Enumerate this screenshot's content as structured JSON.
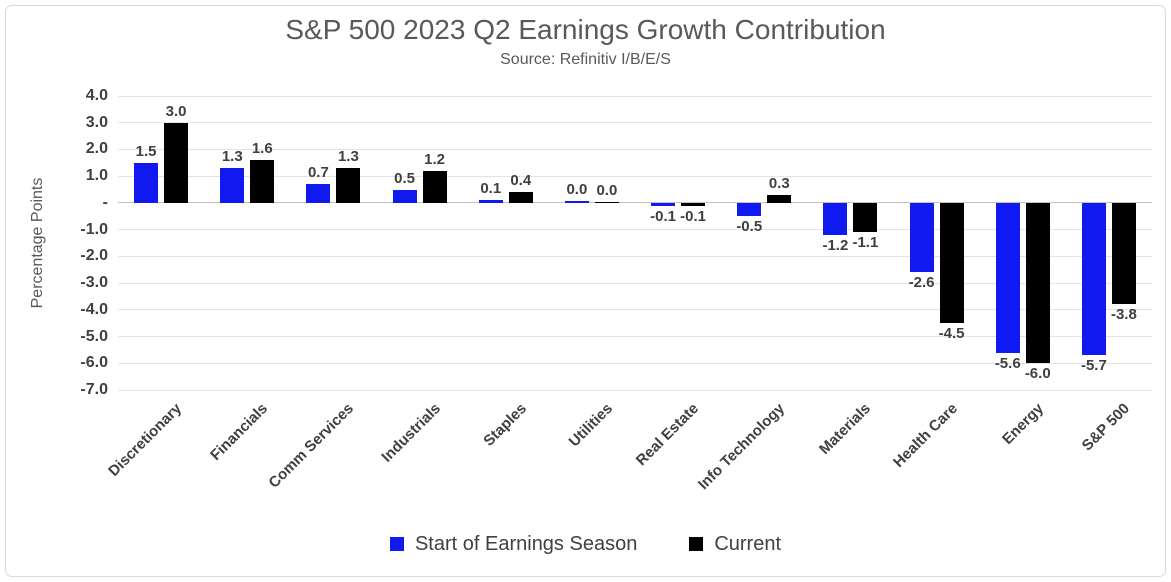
{
  "chart_data": {
    "type": "bar",
    "title": "S&P 500 2023 Q2 Earnings Growth Contribution",
    "subtitle": "Source: Refinitiv I/B/E/S",
    "ylabel": "Percentage Points",
    "xlabel": "",
    "ylim": [
      -7.0,
      4.0
    ],
    "ytick_step": 1.0,
    "ytick_labels": [
      "4.0",
      "3.0",
      "2.0",
      "1.0",
      "-",
      "-1.0",
      "-2.0",
      "-3.0",
      "-4.0",
      "-5.0",
      "-6.0",
      "-7.0"
    ],
    "grid": true,
    "legend_position": "bottom",
    "categories": [
      "Discretionary",
      "Financials",
      "Comm Services",
      "Industrials",
      "Staples",
      "Utilities",
      "Real Estate",
      "Info Technology",
      "Materials",
      "Health Care",
      "Energy",
      "S&P 500"
    ],
    "series": [
      {
        "name": "Start of Earnings Season",
        "color": "#0f19f0",
        "values": [
          1.5,
          1.3,
          0.7,
          0.5,
          0.1,
          0.0,
          -0.1,
          -0.5,
          -1.2,
          -2.6,
          -5.6,
          -5.7
        ],
        "labels": [
          "1.5",
          "1.3",
          "0.7",
          "0.5",
          "0.1",
          "0.0",
          "-0.1",
          "-0.5",
          "-1.2",
          "-2.6",
          "-5.6",
          "-5.7"
        ]
      },
      {
        "name": "Current",
        "color": "#000000",
        "values": [
          3.0,
          1.6,
          1.3,
          1.2,
          0.4,
          0.0,
          -0.1,
          0.3,
          -1.1,
          -4.5,
          -6.0,
          -3.8
        ],
        "labels": [
          "3.0",
          "1.6",
          "1.3",
          "1.2",
          "0.4",
          "0.0",
          "-0.1",
          "0.3",
          "-1.1",
          "-4.5",
          "-6.0",
          "-3.8"
        ]
      }
    ],
    "colors": {
      "grid": "#e3e3e3",
      "zero_line": "#c2c2c2",
      "frame_border": "#d9d9d9",
      "heading_text": "#595959",
      "axis_text": "#3f3f3f",
      "legend_text": "#404040"
    }
  }
}
